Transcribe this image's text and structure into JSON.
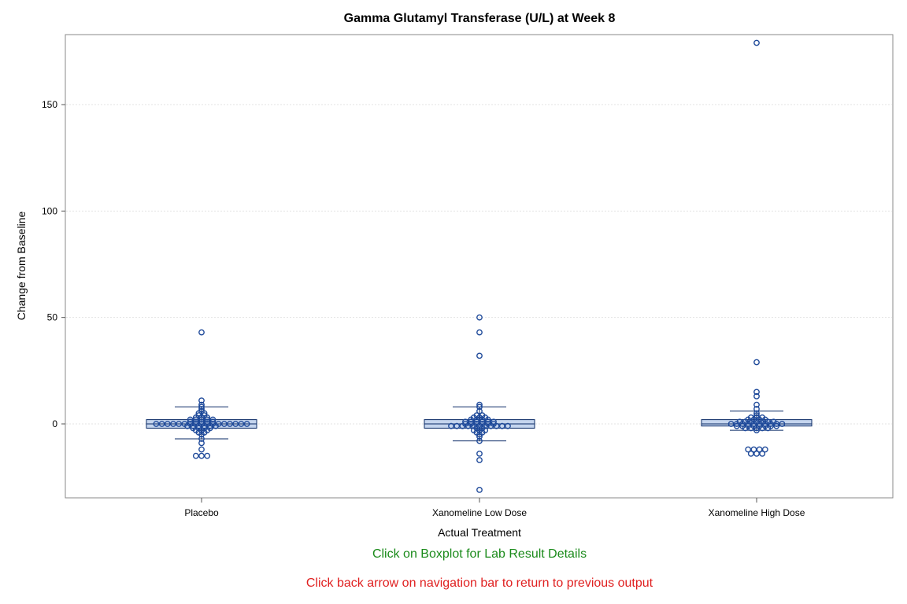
{
  "colors": {
    "box_fill": "#c5d5ee",
    "box_stroke": "#0a2a66",
    "marker": "#1f4a9a",
    "grid": "#e3e3e3",
    "link_note": "#1a8a1a",
    "nav_note": "#e02020"
  },
  "notes": {
    "link": "Click on Boxplot for Lab Result Details",
    "nav": "Click back arrow on navigation bar to return to previous output"
  },
  "chart_data": {
    "type": "boxplot",
    "title": "Gamma Glutamyl Transferase (U/L) at Week 8",
    "xlabel": "Actual Treatment",
    "ylabel": "Change from Baseline",
    "ylim": [
      -35,
      185
    ],
    "yticks": [
      0,
      50,
      100,
      150
    ],
    "grid": true,
    "categories": [
      "Placebo",
      "Xanomeline Low Dose",
      "Xanomeline High Dose"
    ],
    "boxes": [
      {
        "q1": -2,
        "median": 0,
        "q3": 2,
        "whisker_low": -7,
        "whisker_high": 8,
        "points": [
          43,
          11,
          9,
          8,
          7,
          6,
          5,
          5,
          4,
          4,
          3,
          3,
          3,
          2,
          2,
          2,
          2,
          2,
          1,
          1,
          1,
          1,
          1,
          0,
          0,
          0,
          0,
          0,
          0,
          0,
          0,
          0,
          0,
          0,
          0,
          0,
          0,
          0,
          0,
          0,
          -1,
          -1,
          -1,
          -1,
          -1,
          -1,
          -2,
          -2,
          -2,
          -2,
          -3,
          -3,
          -3,
          -4,
          -4,
          -5,
          -7,
          -9,
          -12,
          -15,
          -15,
          -15
        ]
      },
      {
        "q1": -2,
        "median": 0,
        "q3": 2,
        "whisker_low": -8,
        "whisker_high": 8,
        "points": [
          50,
          43,
          32,
          9,
          8,
          6,
          4,
          4,
          3,
          3,
          3,
          2,
          2,
          2,
          2,
          1,
          1,
          1,
          1,
          1,
          1,
          0,
          0,
          0,
          0,
          0,
          0,
          -1,
          -1,
          -1,
          -1,
          -1,
          -1,
          -1,
          -1,
          -1,
          -1,
          -1,
          -2,
          -2,
          -3,
          -3,
          -3,
          -4,
          -4,
          -5,
          -6,
          -8,
          -14,
          -17,
          -31
        ]
      },
      {
        "q1": -1,
        "median": 0,
        "q3": 2,
        "whisker_low": -3,
        "whisker_high": 6,
        "points": [
          179,
          29,
          15,
          13,
          9,
          7,
          5,
          4,
          3,
          3,
          3,
          2,
          2,
          2,
          2,
          1,
          1,
          1,
          1,
          1,
          1,
          1,
          0,
          0,
          0,
          0,
          0,
          0,
          0,
          0,
          0,
          0,
          -1,
          -1,
          -1,
          -1,
          -1,
          -1,
          -1,
          -1,
          -2,
          -2,
          -2,
          -2,
          -2,
          -3,
          -12,
          -12,
          -12,
          -12,
          -14,
          -14,
          -14
        ]
      }
    ]
  }
}
